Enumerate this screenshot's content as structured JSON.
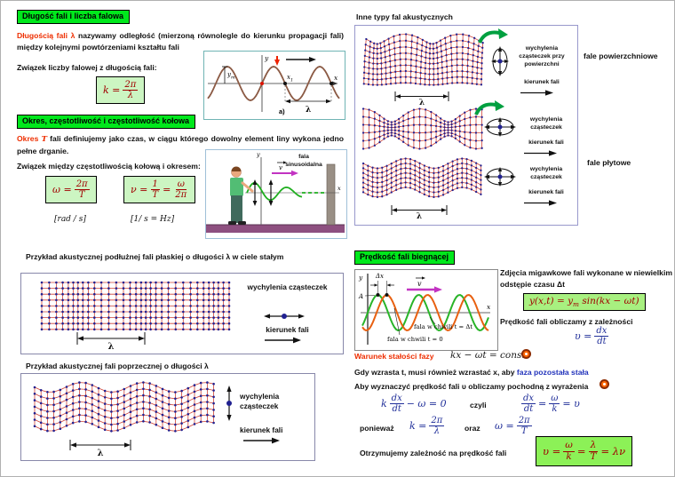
{
  "slide": {
    "s1": {
      "title": "Długość fali i liczba falowa",
      "lead_red": "Długością fali λ",
      "lead_rest": " nazywamy odległość (mierzoną równolegle do kierunku propagacji fali) między kolejnymi powtórzeniami kształtu fali",
      "relation": "Związek liczby falowej z długością fali:",
      "eq_k": {
        "lhs": "k =",
        "num": "2π",
        "den": "λ"
      },
      "fig": {
        "y": "y",
        "x": "x",
        "ym": "y",
        "ym_sub": "m",
        "x1": "x",
        "x1_sub": "1",
        "lambda": "λ",
        "tag": "a)"
      }
    },
    "s2": {
      "title": "Okres, częstotliwość i  częstotliwość kołowa",
      "lead_red": "Okres ",
      "lead_T": "T",
      "lead_rest": " fali definiujemy jako czas, w ciągu którego dowolny element liny wykona jedno pełne drganie.",
      "relation": "Związek między częstotliwością kołową i okresem:",
      "eq_omega": {
        "lhs": "ω =",
        "num": "2π",
        "den": "T",
        "unit": "[rad / s]"
      },
      "eq_nu": {
        "lhs": "ν =",
        "num1": "1",
        "den1": "T",
        "eq": "=",
        "num2": "ω",
        "den2": "2π",
        "unit": "[1/ s = Hz]"
      },
      "fig": {
        "wave1": "fala",
        "wave2": "sinusoidalna",
        "v": "v",
        "x": "x",
        "y": "y"
      }
    },
    "s3": {
      "caption": "Przykład akustycznej podłużnej fali płaskiej o długości λ w ciele stałym",
      "disp": "wychylenia cząsteczek",
      "dir": "kierunek fali",
      "lambda": "λ"
    },
    "s4": {
      "caption": "Przykład akustycznej fali poprzecznej o długości λ",
      "disp": "wychylenia cząsteczek",
      "dir": "kierunek fali",
      "lambda": "λ"
    },
    "s5": {
      "title": "Inne typy fal akustycznych",
      "surf_disp": "wychylenia cząsteczek przy powierzchni",
      "surf_dir": "kierunek fali",
      "surf_lambda": "λ",
      "surf_side": "fale powierzchniowe",
      "p1_disp": "wychylenia cząsteczek",
      "p1_dir": "kierunek fali",
      "p2_disp": "wychylenia cząsteczek",
      "p2_dir": "kierunek fali",
      "p2_lambda": "λ",
      "plate_side": "fale płytowe"
    },
    "s6": {
      "title": "Prędkość fali biegnącej",
      "fig": {
        "y": "y",
        "x": "x",
        "dx": "Δx",
        "A": "A",
        "v": "v",
        "lab_dt": "fala w chwili t = Δt",
        "lab_0": "fala w chwili t = 0"
      },
      "snap": "Zdjęcia migawkowe fali wykonane w niewielkim odstępie czasu Δt",
      "eq_wave": {
        "pre": "y(x,t) = y",
        "sub": "m",
        "post": " sin(kx − ωt)"
      },
      "calc": "Prędkość fali obliczamy z zależności",
      "eq_v": {
        "lhs": "υ =",
        "num": "dx",
        "den": "dt"
      },
      "phase_label": "Warunek stałości fazy",
      "eq_phase": "kx − ωt = const.",
      "grow_black": "Gdy wzrasta t, musi również wzrastać x, aby ",
      "grow_blue": "faza pozostała stała",
      "derive": "Aby wyznaczyć prędkość fali υ obliczamy pochodną z wyrażenia",
      "eq_d": {
        "pre": "k",
        "num": "dx",
        "den": "dt",
        "post": " − ω = 0"
      },
      "czyli": "czyli",
      "eq_r": {
        "num1": "dx",
        "den1": "dt",
        "eq": "=",
        "num2": "ω",
        "den2": "k",
        "post": "= υ"
      },
      "poniewaz": "ponieważ",
      "eq_k2": {
        "lhs": "k =",
        "num": "2π",
        "den": "λ"
      },
      "oraz": "oraz",
      "eq_o2": {
        "lhs": "ω =",
        "num": "2π",
        "den": "T"
      },
      "final": "Otrzymujemy zależność na prędkość fali",
      "eq_f": {
        "lhs": "υ =",
        "num1": "ω",
        "den1": "k",
        "eq": "=",
        "num2": "λ",
        "den2": "T",
        "post": "= λν"
      }
    }
  }
}
